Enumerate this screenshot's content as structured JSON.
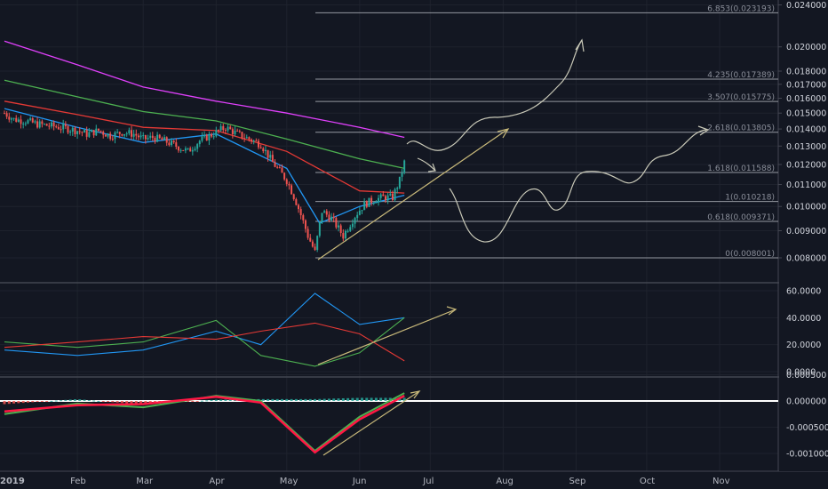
{
  "chart_data": [
    {
      "type": "candlestick",
      "panel": "price",
      "x_axis": [
        "2019",
        "Feb",
        "Mar",
        "Apr",
        "May",
        "Jun",
        "Jul",
        "Aug",
        "Sep",
        "Oct",
        "Nov"
      ],
      "y_ticks": [
        "0.008000",
        "0.009000",
        "0.010000",
        "0.011000",
        "0.012000",
        "0.013000",
        "0.014000",
        "0.015000",
        "0.016000",
        "0.017000",
        "0.018000",
        "0.020000",
        "0.024000"
      ],
      "price_scale": "log",
      "fib_levels": [
        {
          "label": "0(0.008001)",
          "value": 0.008001
        },
        {
          "label": "0.618(0.009371)",
          "value": 0.009371
        },
        {
          "label": "1(0.010218)",
          "value": 0.010218
        },
        {
          "label": "1.618(0.011588)",
          "value": 0.011588
        },
        {
          "label": "2.618(0.013805)",
          "value": 0.013805
        },
        {
          "label": "3.507(0.015775)",
          "value": 0.015775
        },
        {
          "label": "4.235(0.017389)",
          "value": 0.017389
        },
        {
          "label": "6.853(0.023193)",
          "value": 0.023193
        }
      ],
      "close_path": [
        [
          "2019-01-01",
          0.015
        ],
        [
          "2019-01-05",
          0.0146
        ],
        [
          "2019-01-10",
          0.0145
        ],
        [
          "2019-01-15",
          0.0143
        ],
        [
          "2019-01-20",
          0.0142
        ],
        [
          "2019-01-25",
          0.0141
        ],
        [
          "2019-02-01",
          0.0139
        ],
        [
          "2019-02-05",
          0.0137
        ],
        [
          "2019-02-10",
          0.0139
        ],
        [
          "2019-02-15",
          0.0136
        ],
        [
          "2019-02-20",
          0.0138
        ],
        [
          "2019-02-25",
          0.0137
        ],
        [
          "2019-03-01",
          0.0134
        ],
        [
          "2019-03-05",
          0.0135
        ],
        [
          "2019-03-10",
          0.0133
        ],
        [
          "2019-03-15",
          0.013
        ],
        [
          "2019-03-20",
          0.0127
        ],
        [
          "2019-03-25",
          0.0133
        ],
        [
          "2019-04-01",
          0.0138
        ],
        [
          "2019-04-05",
          0.0141
        ],
        [
          "2019-04-10",
          0.0137
        ],
        [
          "2019-04-15",
          0.0134
        ],
        [
          "2019-04-20",
          0.0131
        ],
        [
          "2019-04-25",
          0.0121
        ],
        [
          "2019-05-01",
          0.0112
        ],
        [
          "2019-05-05",
          0.0102
        ],
        [
          "2019-05-10",
          0.0088
        ],
        [
          "2019-05-13",
          0.0082
        ],
        [
          "2019-05-16",
          0.0098
        ],
        [
          "2019-05-20",
          0.0095
        ],
        [
          "2019-05-25",
          0.0088
        ],
        [
          "2019-05-30",
          0.0096
        ],
        [
          "2019-06-03",
          0.0101
        ],
        [
          "2019-06-07",
          0.0103
        ],
        [
          "2019-06-11",
          0.0104
        ],
        [
          "2019-06-15",
          0.0104
        ],
        [
          "2019-06-18",
          0.0112
        ],
        [
          "2019-06-20",
          0.0121
        ]
      ],
      "moving_averages": [
        {
          "color": "#e040fb",
          "points": [
            [
              "2019-01-01",
              0.0205
            ],
            [
              "2019-02-01",
              0.0185
            ],
            [
              "2019-03-01",
              0.0168
            ],
            [
              "2019-04-01",
              0.0158
            ],
            [
              "2019-05-01",
              0.015
            ],
            [
              "2019-06-01",
              0.0141
            ],
            [
              "2019-06-20",
              0.0135
            ]
          ]
        },
        {
          "color": "#4caf50",
          "points": [
            [
              "2019-01-01",
              0.0173
            ],
            [
              "2019-02-01",
              0.0161
            ],
            [
              "2019-03-01",
              0.0151
            ],
            [
              "2019-04-01",
              0.0145
            ],
            [
              "2019-05-01",
              0.0134
            ],
            [
              "2019-06-01",
              0.0123
            ],
            [
              "2019-06-20",
              0.0118
            ]
          ]
        },
        {
          "color": "#e53935",
          "points": [
            [
              "2019-01-01",
              0.0158
            ],
            [
              "2019-02-01",
              0.0149
            ],
            [
              "2019-03-01",
              0.0141
            ],
            [
              "2019-04-01",
              0.0139
            ],
            [
              "2019-05-01",
              0.0127
            ],
            [
              "2019-06-01",
              0.0107
            ],
            [
              "2019-06-20",
              0.0106
            ]
          ]
        },
        {
          "color": "#2196f3",
          "points": [
            [
              "2019-01-01",
              0.0153
            ],
            [
              "2019-02-01",
              0.0141
            ],
            [
              "2019-03-01",
              0.0132
            ],
            [
              "2019-04-01",
              0.0137
            ],
            [
              "2019-05-01",
              0.0118
            ],
            [
              "2019-05-15",
              0.0093
            ],
            [
              "2019-06-01",
              0.01
            ],
            [
              "2019-06-20",
              0.0105
            ]
          ]
        }
      ]
    },
    {
      "type": "line",
      "panel": "dmi",
      "y_ticks": [
        "0.0000",
        "20.0000",
        "40.0000",
        "60.0000"
      ],
      "series": [
        {
          "color": "#2196f3",
          "points": [
            [
              "2019-01-01",
              16
            ],
            [
              "2019-02-01",
              12
            ],
            [
              "2019-03-01",
              16
            ],
            [
              "2019-04-01",
              30
            ],
            [
              "2019-04-20",
              20
            ],
            [
              "2019-05-13",
              58
            ],
            [
              "2019-06-01",
              35
            ],
            [
              "2019-06-20",
              40
            ]
          ]
        },
        {
          "color": "#4caf50",
          "points": [
            [
              "2019-01-01",
              22
            ],
            [
              "2019-02-01",
              18
            ],
            [
              "2019-03-01",
              22
            ],
            [
              "2019-04-01",
              38
            ],
            [
              "2019-04-20",
              12
            ],
            [
              "2019-05-13",
              4
            ],
            [
              "2019-06-01",
              14
            ],
            [
              "2019-06-20",
              40
            ]
          ]
        },
        {
          "color": "#e53935",
          "points": [
            [
              "2019-01-01",
              18
            ],
            [
              "2019-02-01",
              22
            ],
            [
              "2019-03-01",
              26
            ],
            [
              "2019-04-01",
              24
            ],
            [
              "2019-04-20",
              30
            ],
            [
              "2019-05-13",
              36
            ],
            [
              "2019-06-01",
              28
            ],
            [
              "2019-06-20",
              8
            ]
          ]
        }
      ]
    },
    {
      "type": "line",
      "panel": "macd",
      "y_ticks": [
        "0.000500",
        "0.000000",
        "-0.000500",
        "-0.001000"
      ],
      "series": [
        {
          "color": "#4caf50",
          "points": [
            [
              "2019-01-01",
              -0.00025
            ],
            [
              "2019-02-01",
              -5e-05
            ],
            [
              "2019-03-01",
              -0.00012
            ],
            [
              "2019-04-01",
              0.0001
            ],
            [
              "2019-04-20",
              0.0
            ],
            [
              "2019-05-13",
              -0.00095
            ],
            [
              "2019-06-01",
              -0.0003
            ],
            [
              "2019-06-20",
              0.00015
            ]
          ]
        },
        {
          "color": "#ff1744",
          "points": [
            [
              "2019-01-01",
              -0.0002
            ],
            [
              "2019-02-01",
              -8e-05
            ],
            [
              "2019-03-01",
              -6e-05
            ],
            [
              "2019-04-01",
              8e-05
            ],
            [
              "2019-04-20",
              -3e-05
            ],
            [
              "2019-05-13",
              -0.00098
            ],
            [
              "2019-06-01",
              -0.00035
            ],
            [
              "2019-06-20",
              0.0001
            ]
          ]
        }
      ]
    }
  ]
}
